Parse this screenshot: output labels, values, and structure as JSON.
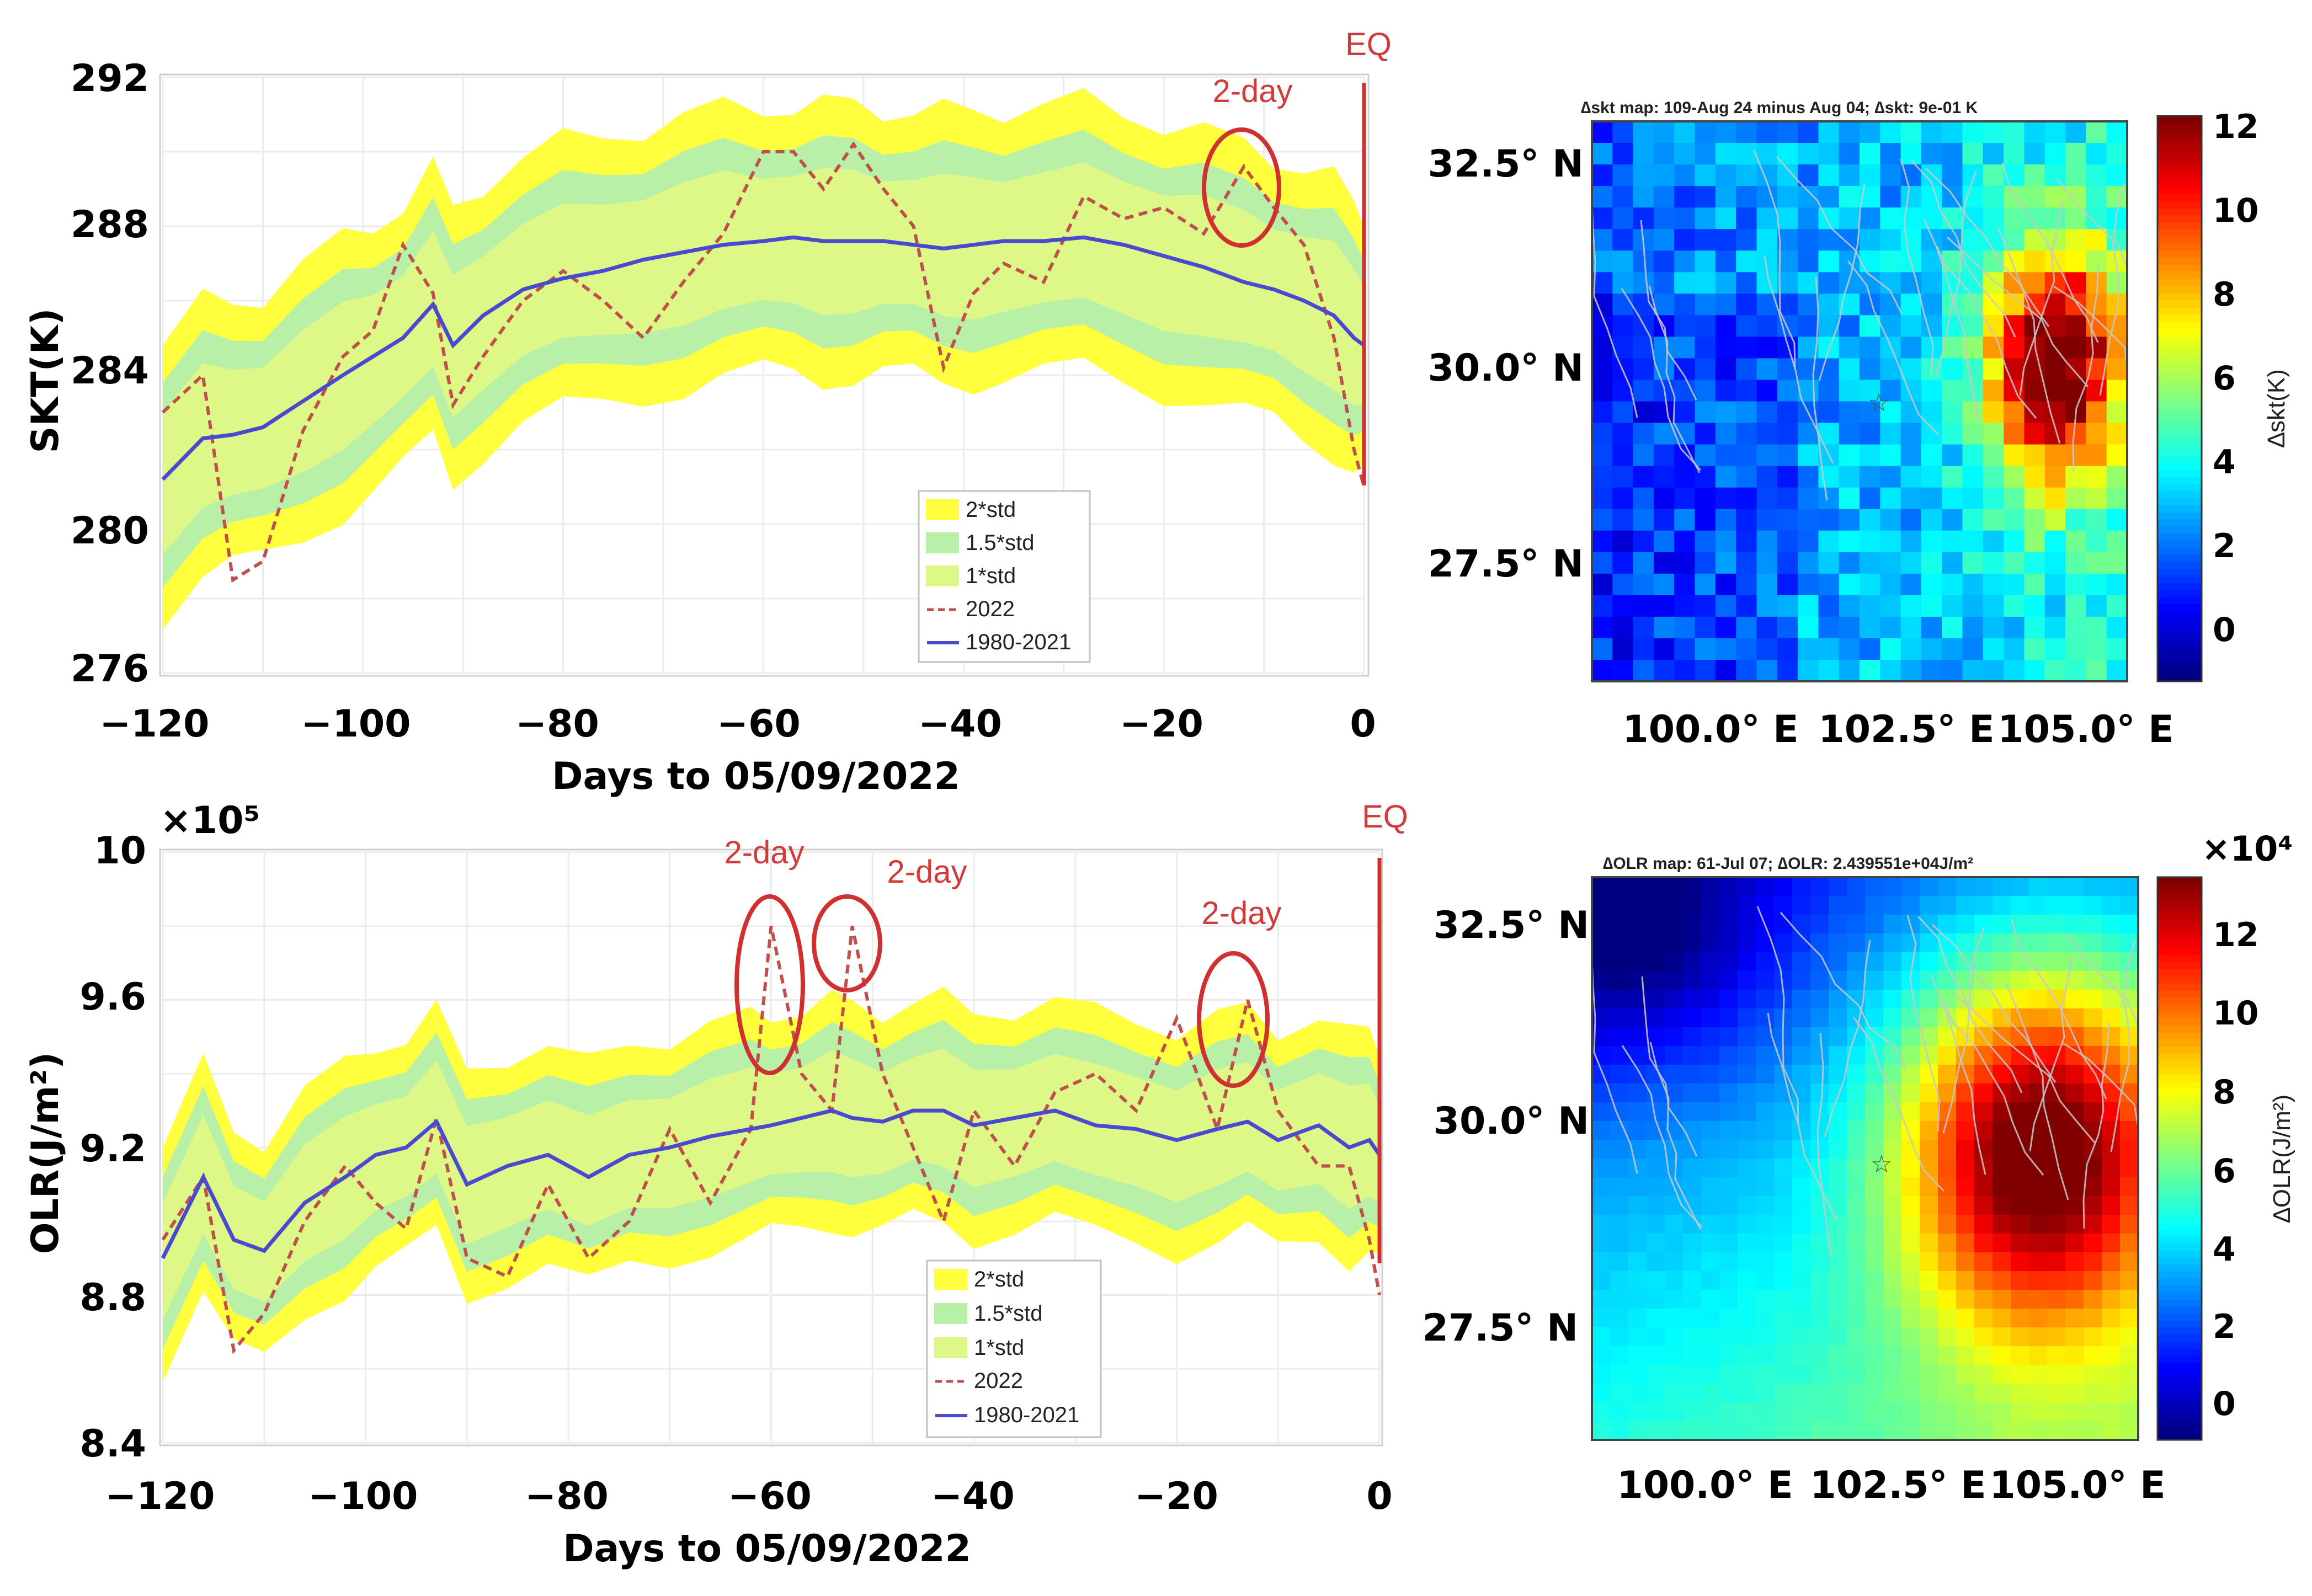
{
  "colors": {
    "band2": "#ffff3d",
    "band15": "#b8f0a8",
    "band1": "#def887",
    "line2022": "#c0504d",
    "mean": "#4a4ad0",
    "eq": "#d03030",
    "annot": "#d23b3b"
  },
  "chart_data": [
    {
      "id": "skt-series",
      "type": "line",
      "ylabel": "SKT(K)",
      "xlabel": "Days to 05/09/2022",
      "xlim": [
        -120,
        0
      ],
      "ylim": [
        276,
        292
      ],
      "xticks": [
        "−120",
        "−100",
        "−80",
        "−60",
        "−40",
        "−20",
        "0"
      ],
      "yticks": [
        "276",
        "280",
        "284",
        "288",
        "292"
      ],
      "legend": [
        "2*std",
        "1.5*std",
        "1*std",
        "2022",
        "1980-2021"
      ],
      "eq_label": "EQ",
      "annotations": [
        {
          "label": "2-day",
          "x": -12,
          "y": 289.5
        }
      ],
      "x": [
        -120,
        -116,
        -113,
        -110,
        -106,
        -102,
        -99,
        -96,
        -93,
        -91,
        -88,
        -84,
        -80,
        -76,
        -72,
        -68,
        -64,
        -60,
        -57,
        -54,
        -51,
        -48,
        -45,
        -42,
        -39,
        -36,
        -32,
        -28,
        -24,
        -20,
        -16,
        -12,
        -9,
        -6,
        -3,
        -1,
        0
      ],
      "series": [
        {
          "name": "1980-2021",
          "values": [
            281.2,
            282.3,
            282.4,
            282.6,
            283.3,
            284.0,
            284.5,
            285.0,
            285.9,
            284.8,
            285.6,
            286.3,
            286.6,
            286.8,
            287.1,
            287.3,
            287.5,
            287.6,
            287.7,
            287.6,
            287.6,
            287.6,
            287.5,
            287.4,
            287.5,
            287.6,
            287.6,
            287.7,
            287.5,
            287.2,
            286.9,
            286.5,
            286.3,
            286.0,
            285.6,
            285.0,
            284.8
          ]
        },
        {
          "name": "2022",
          "values": [
            283.0,
            284.0,
            278.5,
            279.0,
            282.5,
            284.5,
            285.2,
            287.5,
            286.2,
            283.2,
            284.5,
            286.0,
            286.8,
            286.0,
            285.0,
            286.5,
            287.8,
            290.0,
            290.0,
            289.0,
            290.2,
            289.0,
            288.0,
            284.2,
            286.2,
            287.0,
            286.5,
            288.8,
            288.2,
            288.5,
            287.8,
            289.6,
            288.5,
            287.5,
            285.0,
            282.0,
            281.0
          ]
        }
      ]
    },
    {
      "id": "olr-series",
      "type": "line",
      "ylabel": "OLR(J/m²)",
      "xlabel": "Days to 05/09/2022",
      "yscale": "×10⁵",
      "xlim": [
        -120,
        0
      ],
      "ylim": [
        8.4,
        10
      ],
      "xticks": [
        "−120",
        "−100",
        "−80",
        "−60",
        "−40",
        "−20",
        "0"
      ],
      "yticks": [
        "8.4",
        "8.8",
        "9.2",
        "9.6",
        "10"
      ],
      "legend": [
        "2*std",
        "1.5*std",
        "1*std",
        "2022",
        "1980-2021"
      ],
      "eq_label": "EQ",
      "annotations": [
        {
          "label": "2-day",
          "x": -60,
          "y": 9.7
        },
        {
          "label": "2-day",
          "x": -52,
          "y": 9.7
        },
        {
          "label": "2-day",
          "x": -14,
          "y": 9.55
        }
      ],
      "x": [
        -120,
        -116,
        -113,
        -110,
        -106,
        -102,
        -99,
        -96,
        -93,
        -90,
        -86,
        -82,
        -78,
        -74,
        -70,
        -66,
        -62,
        -60,
        -57,
        -54,
        -52,
        -49,
        -46,
        -43,
        -40,
        -36,
        -32,
        -28,
        -24,
        -20,
        -16,
        -13,
        -10,
        -6,
        -3,
        -1,
        0
      ],
      "series": [
        {
          "name": "1980-2021",
          "values": [
            8.9,
            9.12,
            8.95,
            8.92,
            9.05,
            9.12,
            9.18,
            9.2,
            9.27,
            9.1,
            9.15,
            9.18,
            9.12,
            9.18,
            9.2,
            9.23,
            9.25,
            9.26,
            9.28,
            9.3,
            9.28,
            9.27,
            9.3,
            9.3,
            9.26,
            9.28,
            9.3,
            9.26,
            9.25,
            9.22,
            9.25,
            9.27,
            9.22,
            9.26,
            9.2,
            9.22,
            9.18
          ]
        },
        {
          "name": "2022",
          "values": [
            8.95,
            9.12,
            8.65,
            8.75,
            9.0,
            9.15,
            9.05,
            8.98,
            9.28,
            8.9,
            8.85,
            9.1,
            8.9,
            9.0,
            9.25,
            9.05,
            9.25,
            9.8,
            9.4,
            9.3,
            9.8,
            9.4,
            9.2,
            9.0,
            9.3,
            9.15,
            9.35,
            9.4,
            9.3,
            9.55,
            9.25,
            9.6,
            9.3,
            9.15,
            9.15,
            8.95,
            8.8
          ]
        }
      ]
    },
    {
      "id": "skt-map",
      "type": "heatmap",
      "title": "∆skt map: 109-Aug 24 minus Aug 04; ∆skt: 9e-01 K",
      "lat_ticks": [
        "32.5° N",
        "30.0° N",
        "27.5° N"
      ],
      "lon_ticks": [
        "100.0° E",
        "102.5° E",
        "105.0° E"
      ],
      "colorbar_label": "∆skt(K)",
      "colorbar_ticks": [
        "0",
        "2",
        "4",
        "6",
        "8",
        "10",
        "12"
      ],
      "range": [
        -1,
        12.5
      ],
      "epicenter": "☆",
      "hot_spot": {
        "lon": 105.2,
        "lat": 30.2,
        "peak": 12
      }
    },
    {
      "id": "olr-map",
      "type": "heatmap",
      "title": "∆OLR map: 61-Jul 07; ∆OLR: 2.439551e+04J/m²",
      "lat_ticks": [
        "32.5° N",
        "30.0° N",
        "27.5° N"
      ],
      "lon_ticks": [
        "100.0° E",
        "102.5° E",
        "105.0° E"
      ],
      "colorbar_label": "∆OLR(J/m²)",
      "colorbar_scale": "×10⁴",
      "colorbar_ticks": [
        "0",
        "2",
        "4",
        "6",
        "8",
        "10",
        "12"
      ],
      "range": [
        -1,
        13
      ],
      "epicenter": "☆",
      "hot_spot": {
        "lon": 105.0,
        "lat": 29.9,
        "peak": 13
      }
    }
  ]
}
